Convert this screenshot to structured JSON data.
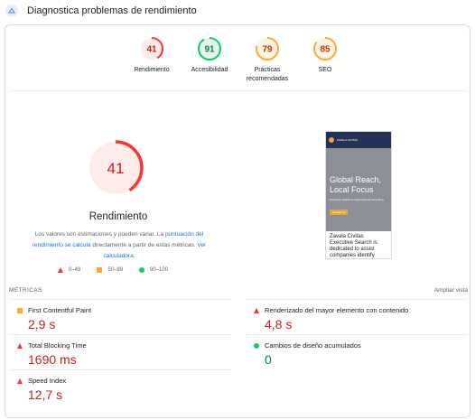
{
  "header": {
    "title": "Diagnostica problemas de rendimiento"
  },
  "scores": [
    {
      "label": "Rendimiento",
      "value": "41",
      "score": 41,
      "color": "#ff3333",
      "bg": "#fdecea",
      "text": "#c5221f"
    },
    {
      "label": "Accesibilidad",
      "value": "91",
      "score": 91,
      "color": "#0cce6b",
      "bg": "#e6f4ea",
      "text": "#0b8043"
    },
    {
      "label": "Prácticas recomendadas",
      "value": "79",
      "score": 79,
      "color": "#ffaa33",
      "bg": "#fef4e5",
      "text": "#c33300"
    },
    {
      "label": "SEO",
      "value": "85",
      "score": 85,
      "color": "#ffaa33",
      "bg": "#fef4e5",
      "text": "#c33300"
    }
  ],
  "main": {
    "score": "41",
    "score_num": 41,
    "title": "Rendimiento",
    "desc_1": "Los valores son estimaciones y pueden variar. La ",
    "desc_link_1": "puntuación del rendimiento se calcula",
    "desc_2": " directamente a partir de estas métricas. ",
    "desc_link_2": "Ver calculadora."
  },
  "legend": {
    "poor": "0–49",
    "average": "50–89",
    "good": "90–100"
  },
  "screenshot": {
    "brand": "ZAVALA CIVITAS",
    "headline": "Global Reach, Local Focus",
    "subline": "Executive search & organizational consulting",
    "button": "Contact us",
    "body": "Zavala Civitas Executive Search is dedicated to assist companies identify"
  },
  "metrics_header": {
    "left": "MÉTRICAS",
    "right": "Ampliar vista"
  },
  "metrics": [
    {
      "label": "First Contentful Paint",
      "value": "2,9 s",
      "status": "average"
    },
    {
      "label": "Renderizado del mayor elemento con contenido",
      "value": "4,8 s",
      "status": "poor"
    },
    {
      "label": "Total Blocking Time",
      "value": "1690 ms",
      "status": "poor"
    },
    {
      "label": "Cambios de diseño acumulados",
      "value": "0",
      "status": "good"
    },
    {
      "label": "Speed Index",
      "value": "12,7 s",
      "status": "poor"
    }
  ]
}
